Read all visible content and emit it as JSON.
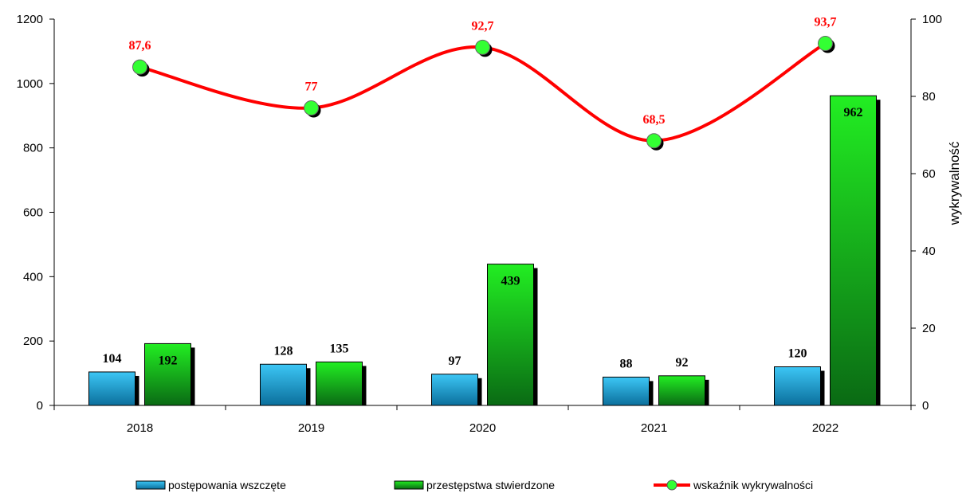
{
  "chart_data": {
    "type": "bar",
    "categories": [
      "2018",
      "2019",
      "2020",
      "2021",
      "2022"
    ],
    "series": [
      {
        "name": "postępowania wszczęte",
        "kind": "bar",
        "axis": "left",
        "color": "#1fa3d6",
        "values": [
          104,
          128,
          97,
          88,
          120
        ],
        "labels": [
          "104",
          "128",
          "97",
          "88",
          "120"
        ]
      },
      {
        "name": "przestępstwa stwierdzone",
        "kind": "bar",
        "axis": "left",
        "color": "#22cc22",
        "values": [
          192,
          135,
          439,
          92,
          962
        ],
        "labels": [
          "192",
          "135",
          "439",
          "92",
          "962"
        ]
      },
      {
        "name": "wskaźnik wykrywalności",
        "kind": "line",
        "axis": "right",
        "color": "#ff0000",
        "marker_color": "#33ff33",
        "values": [
          87.6,
          77,
          92.7,
          68.5,
          93.7
        ],
        "labels": [
          "87,6",
          "77",
          "92,7",
          "68,5",
          "93,7"
        ]
      }
    ],
    "ylim": [
      0,
      1200
    ],
    "y_ticks": [
      "0",
      "200",
      "400",
      "600",
      "800",
      "1000",
      "1200"
    ],
    "y2lim": [
      0,
      100
    ],
    "y2_ticks": [
      "0",
      "20",
      "40",
      "60",
      "80",
      "100"
    ],
    "y2label": "wykrywalność",
    "legend_position": "bottom",
    "grid": false
  }
}
